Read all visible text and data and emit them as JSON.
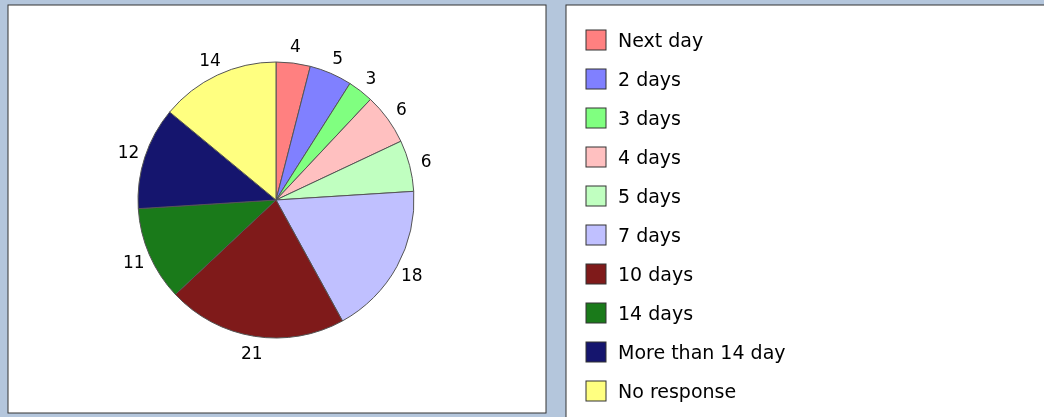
{
  "chart_data": {
    "type": "pie",
    "categories": [
      "Next day",
      "2 days",
      "3 days",
      "4 days",
      "5 days",
      "7 days",
      "10 days",
      "14 days",
      "More than 14 day",
      "No response"
    ],
    "values": [
      4,
      5,
      3,
      6,
      6,
      18,
      21,
      11,
      12,
      14
    ],
    "colors": [
      "#ff8080",
      "#8080ff",
      "#80ff80",
      "#ffc0c0",
      "#c0ffc0",
      "#c0c0ff",
      "#7f1a1a",
      "#1a7a1a",
      "#15156e",
      "#ffff80"
    ],
    "data_labels": true,
    "legend": "right"
  }
}
